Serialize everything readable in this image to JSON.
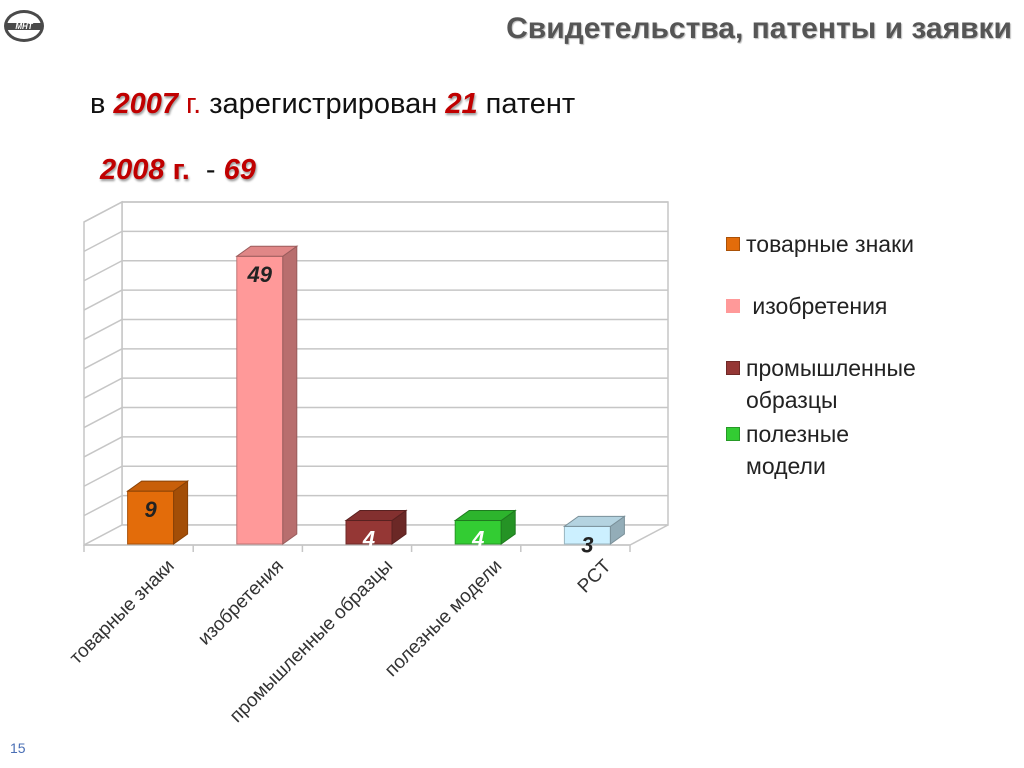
{
  "header": {
    "title": "Свидетельства, патенты и  заявки"
  },
  "logo": {
    "text": "МНТ"
  },
  "summary": {
    "line1_prefix": "в ",
    "line1_year": "2007",
    "line1_year_unit": " г.",
    "line1_middle": " зарегистрирован ",
    "line1_count": "21",
    "line1_suffix": " патент",
    "line2_year": "2008",
    "line2_year_unit": " г.",
    "line2_dash": "  - ",
    "line2_count": "69"
  },
  "colors": {
    "trademarks": "#e36c0a",
    "inventions": "#ff9999",
    "industrial_designs": "#953735",
    "utility_models": "#33cc33",
    "pct": "#ccf0ff",
    "title": "#555555",
    "highlight": "#c00000"
  },
  "chart_data": {
    "type": "bar",
    "style": "3d",
    "categories": [
      "товарные знаки",
      "изобретения",
      "промышленные образцы",
      "полезные модели",
      "PCT"
    ],
    "values": [
      9,
      49,
      4,
      4,
      3
    ],
    "data_labels": [
      "9",
      "49",
      "4",
      "4",
      "3"
    ],
    "ylim": [
      0,
      55
    ],
    "grid": true,
    "legend_position": "right",
    "legend": [
      {
        "label": "товарные знаки",
        "color": "#e36c0a"
      },
      {
        "label": " изобретения",
        "color": "#ff9999"
      },
      {
        "label": "промышленные\nобразцы",
        "color": "#953735"
      },
      {
        "label": "полезные\nмодели",
        "color": "#33cc33"
      }
    ]
  },
  "footer": {
    "page_number": "15"
  }
}
